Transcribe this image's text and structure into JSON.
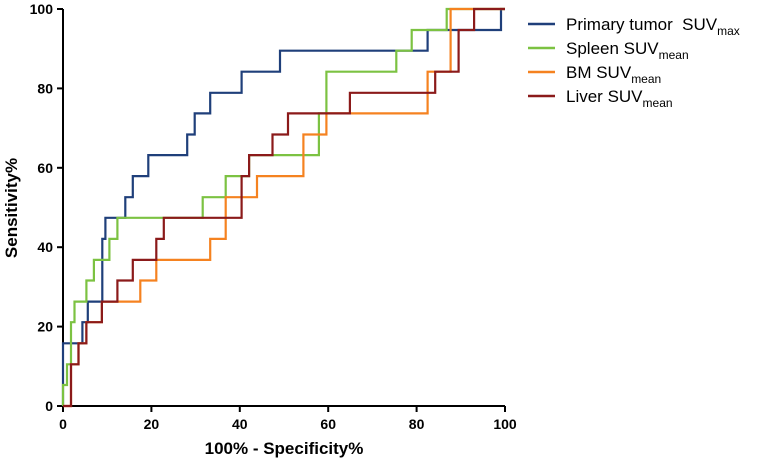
{
  "chart_data": {
    "type": "line",
    "xlabel": "100% - Specificity%",
    "ylabel": "Sensitivity%",
    "xlim": [
      0,
      100
    ],
    "ylim": [
      0,
      100
    ],
    "x_ticks": [
      "0",
      "20",
      "40",
      "60",
      "80",
      "100"
    ],
    "y_ticks": [
      "0",
      "20",
      "40",
      "60",
      "80",
      "100"
    ],
    "grid": false,
    "legend_position": "right",
    "series": [
      {
        "name": "Primary tumor  SUV",
        "name_sub": "max",
        "color": "#1f3f7a",
        "points": [
          [
            0,
            0
          ],
          [
            0,
            15.8
          ],
          [
            4.4,
            15.8
          ],
          [
            4.4,
            21.1
          ],
          [
            5.6,
            21.1
          ],
          [
            5.6,
            26.3
          ],
          [
            8.9,
            26.3
          ],
          [
            8.9,
            42.1
          ],
          [
            9.6,
            42.1
          ],
          [
            9.6,
            47.4
          ],
          [
            14.1,
            47.4
          ],
          [
            14.1,
            52.6
          ],
          [
            15.8,
            52.6
          ],
          [
            15.8,
            57.9
          ],
          [
            19.3,
            57.9
          ],
          [
            19.3,
            63.2
          ],
          [
            28.1,
            63.2
          ],
          [
            28.1,
            68.4
          ],
          [
            29.8,
            68.4
          ],
          [
            29.8,
            73.7
          ],
          [
            33.3,
            73.7
          ],
          [
            33.3,
            78.9
          ],
          [
            40.4,
            78.9
          ],
          [
            40.4,
            84.2
          ],
          [
            49.1,
            84.2
          ],
          [
            49.1,
            89.5
          ],
          [
            82.5,
            89.5
          ],
          [
            82.5,
            94.7
          ],
          [
            99.1,
            94.7
          ],
          [
            99.1,
            100
          ],
          [
            100,
            100
          ]
        ]
      },
      {
        "name": "Spleen SUV",
        "name_sub": "mean",
        "color": "#7cc242",
        "points": [
          [
            0,
            0
          ],
          [
            0,
            5.3
          ],
          [
            0.9,
            5.3
          ],
          [
            0.9,
            10.5
          ],
          [
            1.8,
            10.5
          ],
          [
            1.8,
            21.1
          ],
          [
            2.6,
            21.1
          ],
          [
            2.6,
            26.3
          ],
          [
            5.3,
            26.3
          ],
          [
            5.3,
            31.6
          ],
          [
            7,
            31.6
          ],
          [
            7,
            36.8
          ],
          [
            10.5,
            36.8
          ],
          [
            10.5,
            42.1
          ],
          [
            12.3,
            42.1
          ],
          [
            12.3,
            47.4
          ],
          [
            31.6,
            47.4
          ],
          [
            31.6,
            52.6
          ],
          [
            36.8,
            52.6
          ],
          [
            36.8,
            57.9
          ],
          [
            42.1,
            57.9
          ],
          [
            42.1,
            63.2
          ],
          [
            57.9,
            63.2
          ],
          [
            57.9,
            73.7
          ],
          [
            59.6,
            73.7
          ],
          [
            59.6,
            84.2
          ],
          [
            75.4,
            84.2
          ],
          [
            75.4,
            89.5
          ],
          [
            78.9,
            89.5
          ],
          [
            78.9,
            94.7
          ],
          [
            86.8,
            94.7
          ],
          [
            86.8,
            100
          ],
          [
            100,
            100
          ]
        ]
      },
      {
        "name": "BM SUV",
        "name_sub": "mean",
        "color": "#f58220",
        "points": [
          [
            0,
            0
          ],
          [
            1.8,
            0
          ],
          [
            1.8,
            10.5
          ],
          [
            3.5,
            10.5
          ],
          [
            3.5,
            15.8
          ],
          [
            5.3,
            15.8
          ],
          [
            5.3,
            21.1
          ],
          [
            8.8,
            21.1
          ],
          [
            8.8,
            26.3
          ],
          [
            17.5,
            26.3
          ],
          [
            17.5,
            31.6
          ],
          [
            21.1,
            31.6
          ],
          [
            21.1,
            36.8
          ],
          [
            33.3,
            36.8
          ],
          [
            33.3,
            42.1
          ],
          [
            36.8,
            42.1
          ],
          [
            36.8,
            52.6
          ],
          [
            43.9,
            52.6
          ],
          [
            43.9,
            57.9
          ],
          [
            54.4,
            57.9
          ],
          [
            54.4,
            68.4
          ],
          [
            59.6,
            68.4
          ],
          [
            59.6,
            73.7
          ],
          [
            82.5,
            73.7
          ],
          [
            82.5,
            84.2
          ],
          [
            87.7,
            84.2
          ],
          [
            87.7,
            100
          ],
          [
            100,
            100
          ]
        ]
      },
      {
        "name": "Liver SUV",
        "name_sub": "mean",
        "color": "#8b1a1a",
        "points": [
          [
            0,
            0
          ],
          [
            1.8,
            0
          ],
          [
            1.8,
            10.5
          ],
          [
            3.5,
            10.5
          ],
          [
            3.5,
            15.8
          ],
          [
            5.3,
            15.8
          ],
          [
            5.3,
            21.1
          ],
          [
            8.8,
            21.1
          ],
          [
            8.8,
            26.3
          ],
          [
            12.3,
            26.3
          ],
          [
            12.3,
            31.6
          ],
          [
            15.8,
            31.6
          ],
          [
            15.8,
            36.8
          ],
          [
            21.1,
            36.8
          ],
          [
            21.1,
            42.1
          ],
          [
            22.8,
            42.1
          ],
          [
            22.8,
            47.4
          ],
          [
            40.4,
            47.4
          ],
          [
            40.4,
            57.9
          ],
          [
            42.1,
            57.9
          ],
          [
            42.1,
            63.2
          ],
          [
            47.4,
            63.2
          ],
          [
            47.4,
            68.4
          ],
          [
            50.9,
            68.4
          ],
          [
            50.9,
            73.7
          ],
          [
            64.9,
            73.7
          ],
          [
            64.9,
            78.9
          ],
          [
            84.2,
            78.9
          ],
          [
            84.2,
            84.2
          ],
          [
            89.5,
            84.2
          ],
          [
            89.5,
            94.7
          ],
          [
            93,
            94.7
          ],
          [
            93,
            100
          ],
          [
            100,
            100
          ]
        ]
      }
    ]
  }
}
